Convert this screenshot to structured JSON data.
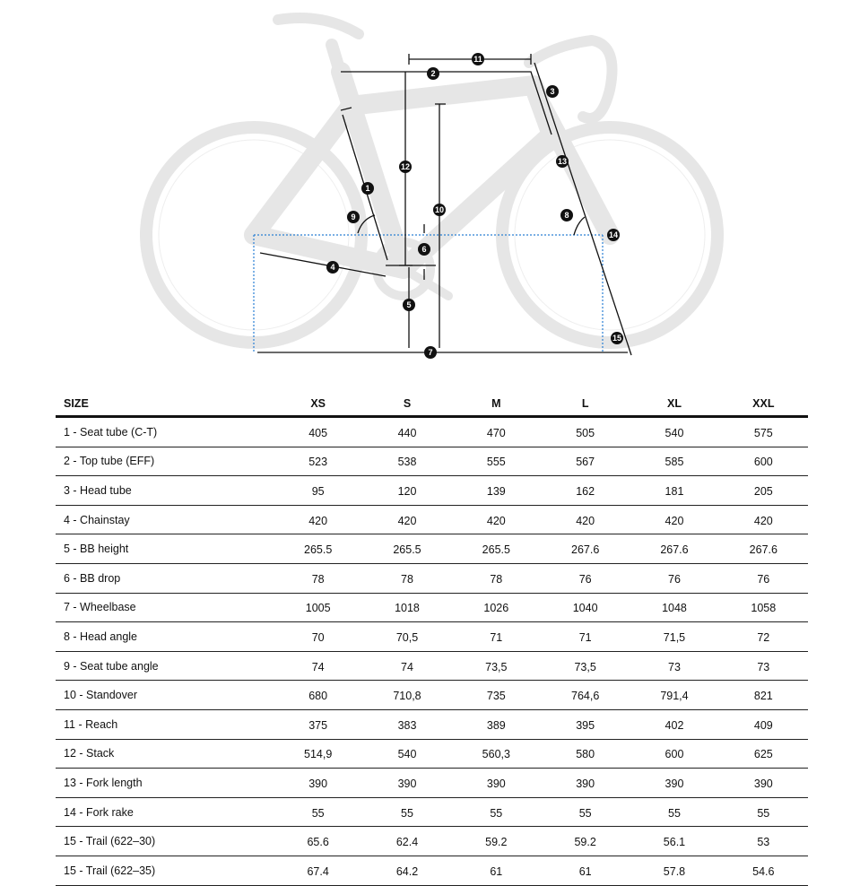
{
  "diagram": {
    "markers": [
      "1",
      "2",
      "3",
      "4",
      "5",
      "6",
      "7",
      "8",
      "9",
      "10",
      "11",
      "12",
      "13",
      "14",
      "15"
    ],
    "colors": {
      "bike": "#e4e4e4",
      "dimension": "#111111",
      "reference_line": "#2a7fd4"
    }
  },
  "table": {
    "headers": [
      "SIZE",
      "XS",
      "S",
      "M",
      "L",
      "XL",
      "XXL"
    ],
    "rows": [
      [
        "1 - Seat tube (C-T)",
        "405",
        "440",
        "470",
        "505",
        "540",
        "575"
      ],
      [
        "2 - Top tube (EFF)",
        "523",
        "538",
        "555",
        "567",
        "585",
        "600"
      ],
      [
        "3 - Head tube",
        "95",
        "120",
        "139",
        "162",
        "181",
        "205"
      ],
      [
        "4 - Chainstay",
        "420",
        "420",
        "420",
        "420",
        "420",
        "420"
      ],
      [
        "5 - BB height",
        "265.5",
        "265.5",
        "265.5",
        "267.6",
        "267.6",
        "267.6"
      ],
      [
        "6 - BB drop",
        "78",
        "78",
        "78",
        "76",
        "76",
        "76"
      ],
      [
        "7 - Wheelbase",
        "1005",
        "1018",
        "1026",
        "1040",
        "1048",
        "1058"
      ],
      [
        "8 - Head angle",
        "70",
        "70,5",
        "71",
        "71",
        "71,5",
        "72"
      ],
      [
        "9 - Seat tube angle",
        "74",
        "74",
        "73,5",
        "73,5",
        "73",
        "73"
      ],
      [
        "10 - Standover",
        "680",
        "710,8",
        "735",
        "764,6",
        "791,4",
        "821"
      ],
      [
        "11 - Reach",
        "375",
        "383",
        "389",
        "395",
        "402",
        "409"
      ],
      [
        "12 - Stack",
        "514,9",
        "540",
        "560,3",
        "580",
        "600",
        "625"
      ],
      [
        "13 - Fork length",
        "390",
        "390",
        "390",
        "390",
        "390",
        "390"
      ],
      [
        "14 - Fork rake",
        "55",
        "55",
        "55",
        "55",
        "55",
        "55"
      ],
      [
        "15 - Trail (622–30)",
        "65.6",
        "62.4",
        "59.2",
        "59.2",
        "56.1",
        "53"
      ],
      [
        "15 - Trail (622–35)",
        "67.4",
        "64.2",
        "61",
        "61",
        "57.8",
        "54.6"
      ]
    ]
  }
}
